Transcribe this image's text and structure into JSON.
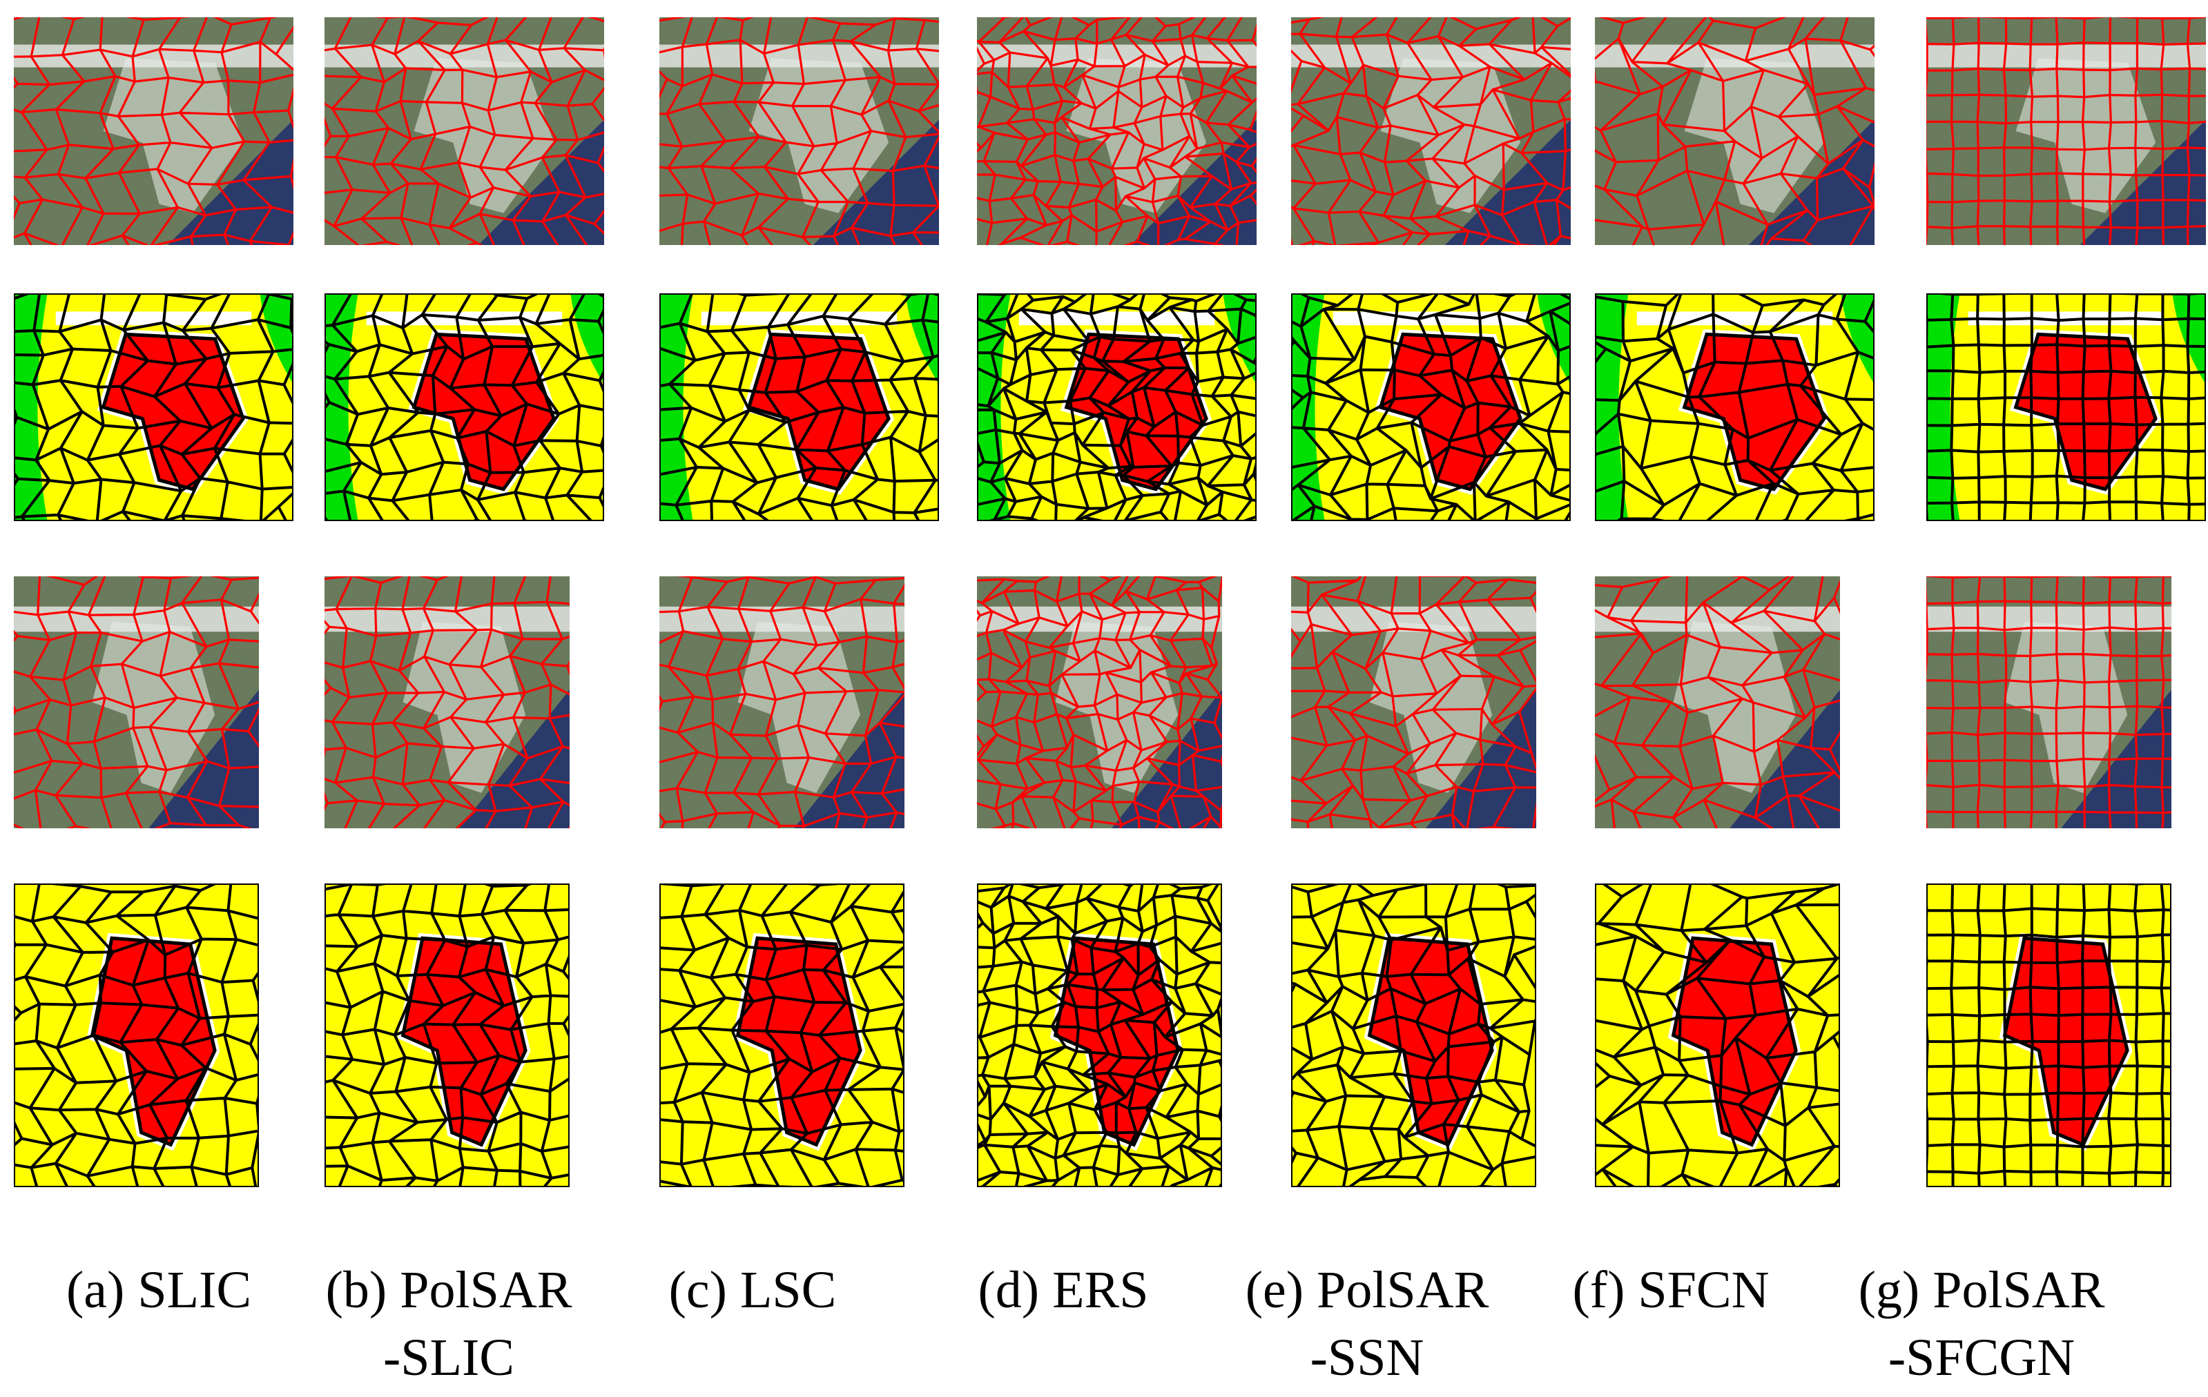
{
  "figure": {
    "colors": {
      "boundary_red": "#ff0000",
      "boundary_black": "#000000",
      "target_red": "#ff0000",
      "background_yellow": "#ffff00",
      "vegetation_green": "#00e000",
      "unclassified_white": "#ffffff",
      "sar_green_tone": "#6a7a5c",
      "sar_blue_tone": "#2a3a6a",
      "sar_white_tone": "#e8ece8"
    },
    "methods": [
      {
        "key": "a",
        "caption_line1": "(a) SLIC",
        "caption_line2": ""
      },
      {
        "key": "b",
        "caption_line1": "(b) PolSAR",
        "caption_line2": "-SLIC"
      },
      {
        "key": "c",
        "caption_line1": "(c) LSC",
        "caption_line2": ""
      },
      {
        "key": "d",
        "caption_line1": "(d) ERS",
        "caption_line2": ""
      },
      {
        "key": "e",
        "caption_line1": "(e) PolSAR",
        "caption_line2": "-SSN"
      },
      {
        "key": "f",
        "caption_line1": "(f) SFCN",
        "caption_line2": ""
      },
      {
        "key": "g",
        "caption_line1": "(g) PolSAR",
        "caption_line2": "-SFCGN"
      }
    ],
    "rows": [
      {
        "kind": "pauli-superpixel-overlay"
      },
      {
        "kind": "classification-map"
      },
      {
        "kind": "pauli-superpixel-overlay"
      },
      {
        "kind": "classification-map"
      }
    ]
  }
}
